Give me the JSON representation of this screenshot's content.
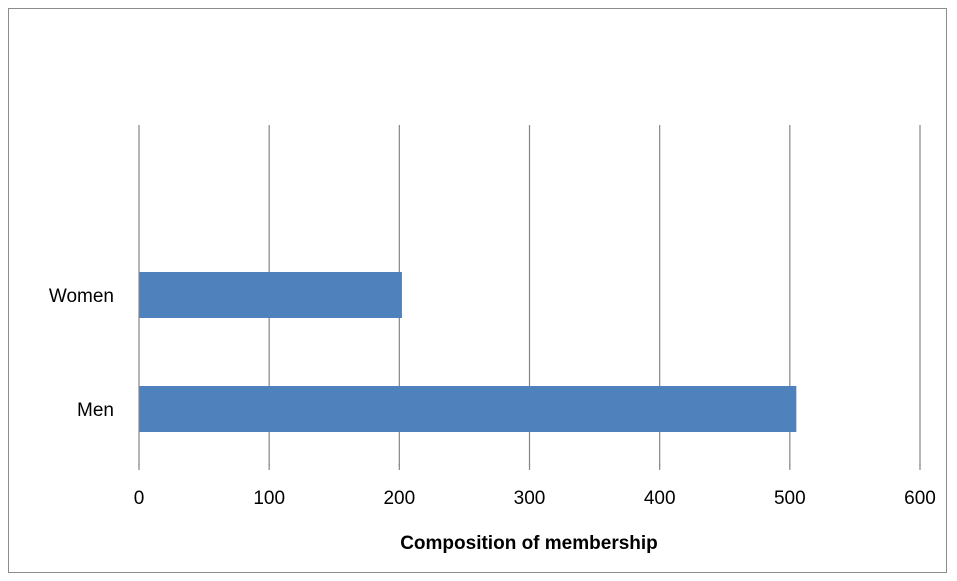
{
  "chart_data": {
    "type": "bar",
    "orientation": "horizontal",
    "title": "",
    "xlabel": "Composition of membership",
    "ylabel": "",
    "categories": [
      "Women",
      "Men"
    ],
    "values": [
      202,
      505
    ],
    "xlim": [
      0,
      600
    ],
    "xticks": [
      0,
      100,
      200,
      300,
      400,
      500,
      600
    ],
    "grid": "vertical",
    "legend": "none",
    "bar_color": "#4f81bd",
    "grid_color": "#868686"
  }
}
